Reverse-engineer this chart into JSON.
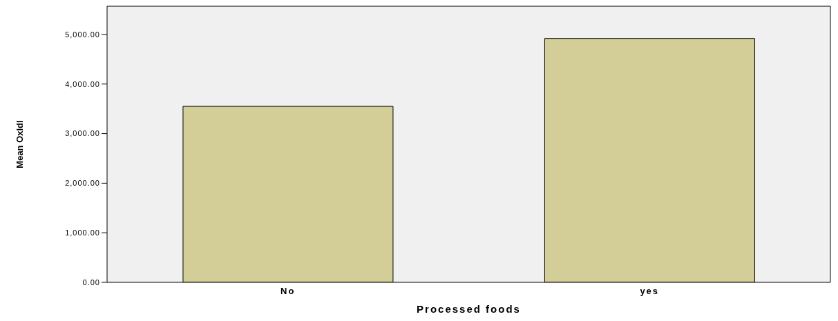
{
  "chart_data": {
    "type": "bar",
    "xlabel": "Processed foods",
    "ylabel": "Mean Oxldl",
    "categories": [
      "No",
      "yes"
    ],
    "values": [
      3550,
      4920
    ],
    "color": "#d3ce97",
    "ylim": [
      0,
      5570
    ],
    "yticks": [
      {
        "value": 0,
        "label": "0.00"
      },
      {
        "value": 1000,
        "label": "1,000.00"
      },
      {
        "value": 2000,
        "label": "2,000.00"
      },
      {
        "value": 3000,
        "label": "3,000.00"
      },
      {
        "value": 4000,
        "label": "4,000.00"
      },
      {
        "value": 5000,
        "label": "5,000.00"
      }
    ],
    "grid": false
  }
}
